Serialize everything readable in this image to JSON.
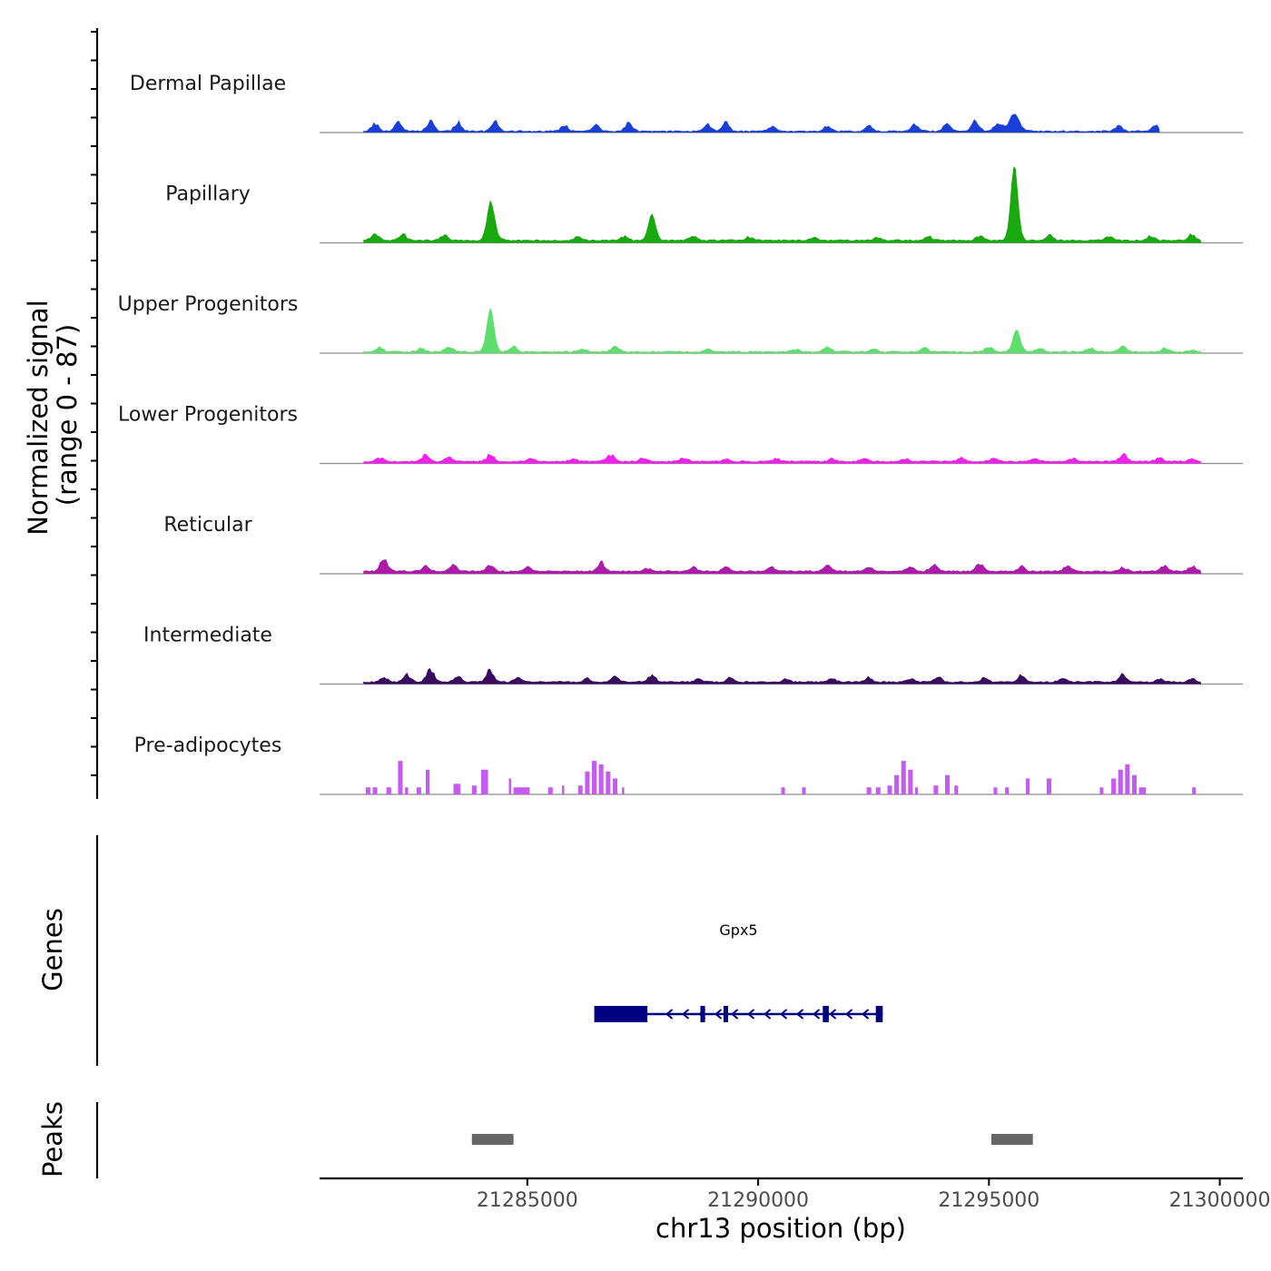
{
  "chart_data": {
    "type": "area",
    "chromosome": "chr13",
    "region": [
      21280500,
      21300500
    ],
    "y_title": [
      "Normalized signal",
      "(range 0 - 87)"
    ],
    "ylim": [
      0,
      87
    ],
    "xlabel": "chr13 position (bp)",
    "x_ticks": [
      21285000,
      21290000,
      21295000,
      21300000
    ],
    "x_tick_labels": [
      "21285000",
      "21290000",
      "21295000",
      "21300000"
    ],
    "tracks": [
      {
        "name": "Dermal Papillae",
        "color": "#1a3fd6",
        "style": "smooth",
        "base": 1.2,
        "end": 21298700,
        "noise_pos": [
          21281700,
          21282200,
          21282900,
          21283500,
          21284300,
          21285800,
          21286500,
          21287200,
          21288900,
          21289300,
          21290300,
          21291500,
          21292400,
          21293400,
          21294100,
          21294700,
          21295200,
          21297800,
          21298600
        ],
        "noise_val": [
          12,
          14,
          15,
          12,
          14,
          8,
          9,
          13,
          9,
          12,
          8,
          7,
          7,
          10,
          12,
          16,
          13,
          9,
          8
        ],
        "peaks": [
          {
            "pos": 21295550,
            "val": 20,
            "width": 150
          }
        ]
      },
      {
        "name": "Papillary",
        "color": "#1aa80f",
        "style": "smooth",
        "base": 2.5,
        "end": 21299600,
        "noise_pos": [
          21281700,
          21282300,
          21283200,
          21284300,
          21286100,
          21287100,
          21288600,
          21289800,
          21291200,
          21292600,
          21293700,
          21294800,
          21296300,
          21297600,
          21298500,
          21299400
        ],
        "noise_val": [
          11,
          9,
          7,
          10,
          5,
          5,
          7,
          5,
          4,
          4,
          5,
          6,
          7,
          7,
          7,
          8
        ],
        "peaks": [
          {
            "pos": 21284200,
            "val": 41,
            "width": 110
          },
          {
            "pos": 21287700,
            "val": 30,
            "width": 110
          },
          {
            "pos": 21295550,
            "val": 87,
            "width": 110
          }
        ]
      },
      {
        "name": "Upper Progenitors",
        "color": "#5ede6d",
        "style": "smooth",
        "base": 1.2,
        "end": 21299600,
        "noise_pos": [
          21281800,
          21282700,
          21283300,
          21284700,
          21286200,
          21286900,
          21288900,
          21290800,
          21291500,
          21292500,
          21293600,
          21295000,
          21296100,
          21297200,
          21297900,
          21298800,
          21299400
        ],
        "noise_val": [
          6,
          6,
          8,
          7,
          4,
          7,
          4,
          4,
          8,
          4,
          6,
          7,
          5,
          6,
          7,
          5,
          3
        ],
        "peaks": [
          {
            "pos": 21284200,
            "val": 50,
            "width": 110
          },
          {
            "pos": 21295600,
            "val": 26,
            "width": 110
          }
        ]
      },
      {
        "name": "Lower Progenitors",
        "color": "#ee22e8",
        "style": "smooth",
        "base": 2.0,
        "end": 21299600,
        "noise_pos": [
          21281800,
          21282800,
          21283300,
          21284200,
          21285100,
          21286000,
          21286800,
          21287500,
          21288400,
          21289300,
          21290400,
          21291600,
          21292300,
          21293200,
          21294400,
          21295100,
          21296000,
          21296800,
          21297900,
          21298700,
          21299400
        ],
        "noise_val": [
          5,
          9,
          7,
          10,
          5,
          4,
          10,
          5,
          5,
          4,
          5,
          4,
          4,
          4,
          5,
          5,
          4,
          4,
          10,
          6,
          4
        ],
        "peaks": []
      },
      {
        "name": "Reticular",
        "color": "#ab1ca8",
        "style": "smooth",
        "base": 2.5,
        "end": 21299600,
        "noise_pos": [
          21281900,
          21282800,
          21283400,
          21284200,
          21285000,
          21286600,
          21287600,
          21288600,
          21289300,
          21290300,
          21291500,
          21292400,
          21293300,
          21293800,
          21294800,
          21295700,
          21296700,
          21297900,
          21298800,
          21299400
        ],
        "noise_val": [
          19,
          8,
          11,
          10,
          6,
          13,
          4,
          6,
          6,
          7,
          8,
          6,
          7,
          11,
          12,
          7,
          8,
          6,
          8,
          7
        ],
        "peaks": []
      },
      {
        "name": "Intermediate",
        "color": "#3a0a5e",
        "style": "smooth",
        "base": 2.0,
        "end": 21299600,
        "noise_pos": [
          21281900,
          21282400,
          21282900,
          21283500,
          21284200,
          21284800,
          21286300,
          21286900,
          21287700,
          21288700,
          21289400,
          21290600,
          21291600,
          21292400,
          21293300,
          21293900,
          21294900,
          21295700,
          21296600,
          21297900,
          21298700,
          21299400
        ],
        "noise_val": [
          7,
          10,
          19,
          8,
          17,
          7,
          6,
          8,
          10,
          5,
          6,
          4,
          5,
          6,
          5,
          8,
          6,
          9,
          5,
          11,
          4,
          5
        ],
        "peaks": []
      },
      {
        "name": "Pre-adipocytes",
        "color": "#c45cf2",
        "style": "sparse",
        "base": 0,
        "end": 21299600,
        "blocks": [
          [
            21281500,
            21281600,
            8
          ],
          [
            21281650,
            21281750,
            8
          ],
          [
            21281950,
            21282050,
            8
          ],
          [
            21282200,
            21282300,
            38
          ],
          [
            21282350,
            21282420,
            8
          ],
          [
            21282600,
            21282700,
            8
          ],
          [
            21282800,
            21282880,
            28
          ],
          [
            21283400,
            21283550,
            12
          ],
          [
            21283800,
            21283900,
            10
          ],
          [
            21284000,
            21284150,
            28
          ],
          [
            21284600,
            21284650,
            18
          ],
          [
            21284700,
            21285050,
            8
          ],
          [
            21285450,
            21285550,
            8
          ],
          [
            21285750,
            21285800,
            10
          ],
          [
            21286100,
            21286200,
            10
          ],
          [
            21286250,
            21286350,
            26
          ],
          [
            21286400,
            21286500,
            38
          ],
          [
            21286550,
            21286650,
            34
          ],
          [
            21286700,
            21286800,
            26
          ],
          [
            21286850,
            21286950,
            18
          ],
          [
            21287050,
            21287100,
            8
          ],
          [
            21290500,
            21290580,
            8
          ],
          [
            21290950,
            21291030,
            8
          ],
          [
            21292350,
            21292450,
            8
          ],
          [
            21292550,
            21292650,
            8
          ],
          [
            21292800,
            21292900,
            10
          ],
          [
            21292950,
            21293050,
            22
          ],
          [
            21293100,
            21293200,
            38
          ],
          [
            21293250,
            21293350,
            28
          ],
          [
            21293400,
            21293460,
            8
          ],
          [
            21293800,
            21293900,
            10
          ],
          [
            21294050,
            21294150,
            22
          ],
          [
            21294250,
            21294330,
            10
          ],
          [
            21295100,
            21295180,
            8
          ],
          [
            21295350,
            21295430,
            8
          ],
          [
            21295800,
            21295880,
            18
          ],
          [
            21296250,
            21296350,
            18
          ],
          [
            21297400,
            21297480,
            8
          ],
          [
            21297650,
            21297750,
            18
          ],
          [
            21297800,
            21297900,
            28
          ],
          [
            21297950,
            21298050,
            34
          ],
          [
            21298100,
            21298200,
            22
          ],
          [
            21298250,
            21298400,
            8
          ],
          [
            21299400,
            21299480,
            8
          ]
        ]
      }
    ],
    "genes": [
      {
        "name": "Gpx5",
        "strand": "-",
        "start": 21286450,
        "end": 21292700,
        "exons": [
          [
            21286450,
            21287600
          ],
          [
            21288750,
            21288850
          ],
          [
            21289250,
            21289350
          ],
          [
            21291400,
            21291530
          ],
          [
            21292550,
            21292700
          ]
        ]
      }
    ],
    "peaks": [
      {
        "start": 21283800,
        "end": 21284700
      },
      {
        "start": 21295050,
        "end": 21295950
      }
    ],
    "panel_titles": [
      "Genes",
      "Peaks"
    ]
  }
}
